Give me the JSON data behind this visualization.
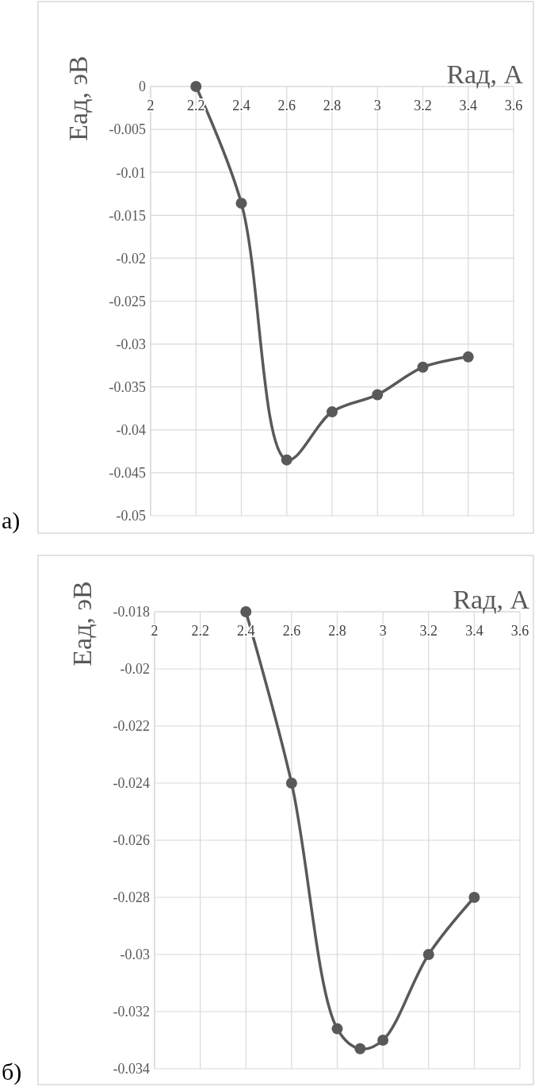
{
  "chart_data": [
    {
      "type": "line",
      "xlabel": "Rад, А",
      "ylabel": "Еад, эВ",
      "annotations": [
        "а)"
      ],
      "xlim": [
        2,
        3.6
      ],
      "xticks": [
        2,
        2.2,
        2.4,
        2.6,
        2.8,
        3,
        3.2,
        3.4,
        3.6
      ],
      "ylim": [
        -0.05,
        0
      ],
      "yticks": [
        -0.05,
        -0.045,
        -0.04,
        -0.035,
        -0.03,
        -0.025,
        -0.02,
        -0.015,
        -0.01,
        -0.005,
        0
      ],
      "grid": true,
      "marker": "circle",
      "line_style": "solid",
      "series": [
        {
          "color": "#595959",
          "x": [
            2.2,
            2.4,
            2.6,
            2.8,
            3.0,
            3.2,
            3.4
          ],
          "values": [
            0,
            -0.0136,
            -0.0435,
            -0.0379,
            -0.0359,
            -0.0327,
            -0.0315
          ]
        }
      ]
    },
    {
      "type": "line",
      "xlabel": "Rад, А",
      "ylabel": "Еад, эВ",
      "annotations": [
        "б)"
      ],
      "xlim": [
        2,
        3.6
      ],
      "xticks": [
        2,
        2.2,
        2.4,
        2.6,
        2.8,
        3,
        3.2,
        3.4,
        3.6
      ],
      "ylim": [
        -0.034,
        -0.018
      ],
      "yticks": [
        -0.034,
        -0.032,
        -0.03,
        -0.028,
        -0.026,
        -0.024,
        -0.022,
        -0.02,
        -0.018
      ],
      "grid": true,
      "marker": "circle",
      "line_style": "solid",
      "series": [
        {
          "color": "#595959",
          "x": [
            2.4,
            2.6,
            2.8,
            2.9,
            3.0,
            3.2,
            3.4
          ],
          "values": [
            -0.018,
            -0.024,
            -0.0326,
            -0.0333,
            -0.033,
            -0.03,
            -0.028
          ]
        }
      ]
    }
  ]
}
